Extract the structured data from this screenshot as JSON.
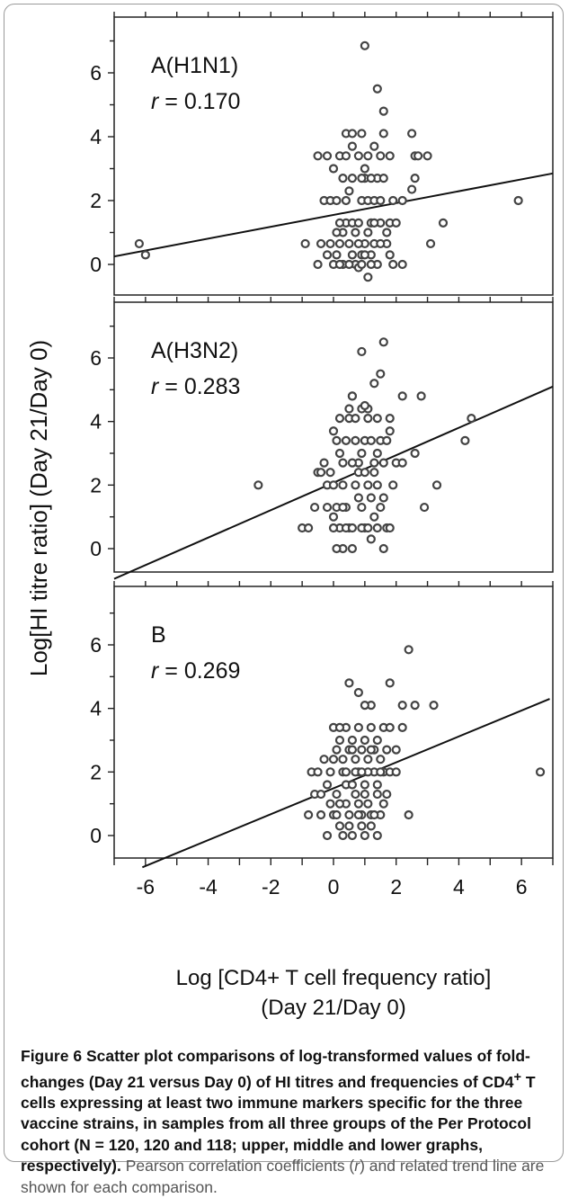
{
  "figure": {
    "ylabel": "Log[HI titre ratio] (Day 21/Day 0)",
    "xlabel_line1": "Log [CD4+ T cell frequency ratio]",
    "xlabel_line2": "(Day 21/Day 0)",
    "caption": {
      "label": "Figure 6",
      "bold_text_1": " Scatter plot comparisons of log-transformed values of fold-changes (Day 21 versus Day 0) of HI titres and frequencies of CD4",
      "superscript": "+",
      "bold_text_2": " T cells expressing at least two immune markers specific for the three vaccine strains, in samples from all three groups of the Per Protocol cohort (N = 120, 120 and 118; upper, middle and lower graphs, respectively).",
      "plain_text_1": " Pearson correlation coefficients (",
      "plain_italic": "r",
      "plain_text_2": ") and related trend line are shown for each comparison."
    }
  },
  "chart_data": [
    {
      "type": "scatter",
      "title": "A(H1N1)",
      "r_label": "r",
      "r_value": "= 0.170",
      "xlim": [
        -7,
        7
      ],
      "ylim": [
        -1,
        7
      ],
      "yticks": [
        0,
        2,
        4,
        6
      ],
      "trend_line": [
        [
          -7,
          0.25
        ],
        [
          7,
          2.85
        ]
      ],
      "points": [
        [
          -6.2,
          0.65
        ],
        [
          -6.0,
          0.3
        ],
        [
          1.0,
          6.85
        ],
        [
          1.4,
          5.5
        ],
        [
          1.6,
          4.8
        ],
        [
          3.0,
          3.4
        ],
        [
          2.5,
          4.1
        ],
        [
          2.6,
          2.7
        ],
        [
          2.5,
          2.35
        ],
        [
          2.6,
          3.4
        ],
        [
          2.7,
          3.4
        ],
        [
          3.5,
          1.3
        ],
        [
          3.1,
          0.65
        ],
        [
          5.9,
          2.0
        ],
        [
          -0.9,
          0.65
        ],
        [
          -0.5,
          0.0
        ],
        [
          -0.2,
          0.3
        ],
        [
          -0.1,
          0.65
        ],
        [
          0.0,
          0.0
        ],
        [
          0.1,
          0.3
        ],
        [
          0.2,
          0.65
        ],
        [
          0.3,
          1.0
        ],
        [
          0.4,
          1.3
        ],
        [
          0.5,
          0.65
        ],
        [
          0.6,
          0.3
        ],
        [
          0.7,
          0.0
        ],
        [
          0.8,
          -0.1
        ],
        [
          0.9,
          0.3
        ],
        [
          1.0,
          0.65
        ],
        [
          1.1,
          1.0
        ],
        [
          1.2,
          0.3
        ],
        [
          1.3,
          0.65
        ],
        [
          1.4,
          0.0
        ],
        [
          1.5,
          1.3
        ],
        [
          1.7,
          0.65
        ],
        [
          1.8,
          0.3
        ],
        [
          1.9,
          0.0
        ],
        [
          2.2,
          0.0
        ],
        [
          0.2,
          1.3
        ],
        [
          0.4,
          2.0
        ],
        [
          0.5,
          2.3
        ],
        [
          0.6,
          1.3
        ],
        [
          0.7,
          1.0
        ],
        [
          0.8,
          1.3
        ],
        [
          0.9,
          2.0
        ],
        [
          1.0,
          2.7
        ],
        [
          1.1,
          2.0
        ],
        [
          1.2,
          1.3
        ],
        [
          1.3,
          2.0
        ],
        [
          1.4,
          2.7
        ],
        [
          1.5,
          2.0
        ],
        [
          1.6,
          2.7
        ],
        [
          1.8,
          1.3
        ],
        [
          1.9,
          2.0
        ],
        [
          2.2,
          2.0
        ],
        [
          -0.3,
          2.0
        ],
        [
          -0.1,
          2.0
        ],
        [
          0.1,
          2.0
        ],
        [
          0.3,
          2.7
        ],
        [
          0.6,
          2.7
        ],
        [
          0.9,
          2.7
        ],
        [
          1.0,
          3.0
        ],
        [
          1.2,
          2.7
        ],
        [
          1.5,
          3.4
        ],
        [
          1.8,
          3.4
        ],
        [
          2.0,
          1.3
        ],
        [
          -0.5,
          3.4
        ],
        [
          -0.2,
          3.4
        ],
        [
          0.0,
          3.0
        ],
        [
          0.2,
          3.4
        ],
        [
          0.4,
          3.4
        ],
        [
          0.6,
          3.7
        ],
        [
          0.8,
          3.4
        ],
        [
          0.9,
          4.1
        ],
        [
          1.1,
          3.4
        ],
        [
          1.3,
          3.7
        ],
        [
          0.4,
          4.1
        ],
        [
          0.6,
          4.1
        ],
        [
          1.6,
          4.1
        ],
        [
          0.3,
          0.0
        ],
        [
          0.5,
          0.0
        ],
        [
          0.9,
          0.0
        ],
        [
          1.1,
          -0.4
        ],
        [
          1.2,
          0.0
        ],
        [
          1.5,
          0.65
        ],
        [
          1.7,
          1.0
        ],
        [
          0.1,
          1.0
        ],
        [
          -0.4,
          0.65
        ],
        [
          0.2,
          0.0
        ],
        [
          0.8,
          0.65
        ],
        [
          1.0,
          0.3
        ],
        [
          1.3,
          1.3
        ]
      ]
    },
    {
      "type": "scatter",
      "title": "A(H3N2)",
      "r_label": "r",
      "r_value": "= 0.283",
      "xlim": [
        -7,
        7
      ],
      "ylim": [
        -1,
        7
      ],
      "yticks": [
        0,
        2,
        4,
        6
      ],
      "trend_line": [
        [
          -7,
          -0.95
        ],
        [
          7,
          5.1
        ]
      ],
      "points": [
        [
          -2.4,
          2.0
        ],
        [
          1.6,
          6.5
        ],
        [
          0.9,
          6.2
        ],
        [
          1.5,
          5.5
        ],
        [
          1.3,
          5.2
        ],
        [
          2.2,
          4.8
        ],
        [
          2.8,
          4.8
        ],
        [
          4.4,
          4.1
        ],
        [
          4.2,
          3.4
        ],
        [
          2.6,
          3.0
        ],
        [
          3.3,
          2.0
        ],
        [
          2.9,
          1.3
        ],
        [
          -1.0,
          0.65
        ],
        [
          -0.8,
          0.65
        ],
        [
          -0.6,
          1.3
        ],
        [
          -0.5,
          2.4
        ],
        [
          -0.4,
          2.4
        ],
        [
          -0.3,
          2.7
        ],
        [
          -0.2,
          2.0
        ],
        [
          -0.1,
          2.4
        ],
        [
          0.0,
          2.0
        ],
        [
          0.1,
          1.3
        ],
        [
          0.2,
          0.65
        ],
        [
          0.3,
          0.0
        ],
        [
          0.4,
          1.3
        ],
        [
          0.5,
          0.65
        ],
        [
          0.6,
          0.0
        ],
        [
          0.7,
          2.0
        ],
        [
          0.8,
          2.4
        ],
        [
          0.9,
          1.3
        ],
        [
          1.0,
          0.65
        ],
        [
          1.1,
          2.0
        ],
        [
          1.2,
          0.3
        ],
        [
          1.3,
          1.0
        ],
        [
          1.4,
          2.0
        ],
        [
          1.5,
          1.3
        ],
        [
          1.6,
          0.0
        ],
        [
          1.7,
          0.65
        ],
        [
          1.8,
          0.65
        ],
        [
          1.9,
          2.0
        ],
        [
          2.0,
          2.7
        ],
        [
          2.2,
          2.7
        ],
        [
          0.0,
          3.7
        ],
        [
          0.1,
          3.4
        ],
        [
          0.2,
          3.0
        ],
        [
          0.3,
          2.7
        ],
        [
          0.4,
          3.4
        ],
        [
          0.5,
          4.1
        ],
        [
          0.6,
          4.8
        ],
        [
          0.7,
          3.4
        ],
        [
          0.8,
          2.7
        ],
        [
          0.9,
          3.0
        ],
        [
          1.0,
          3.4
        ],
        [
          1.1,
          4.4
        ],
        [
          1.2,
          3.4
        ],
        [
          1.3,
          2.7
        ],
        [
          1.4,
          3.0
        ],
        [
          1.5,
          3.4
        ],
        [
          1.6,
          2.7
        ],
        [
          1.7,
          3.4
        ],
        [
          1.8,
          3.7
        ],
        [
          0.2,
          4.1
        ],
        [
          0.5,
          4.4
        ],
        [
          0.7,
          4.1
        ],
        [
          0.9,
          4.4
        ],
        [
          1.1,
          4.1
        ],
        [
          1.4,
          4.1
        ],
        [
          1.8,
          4.1
        ],
        [
          0.0,
          0.65
        ],
        [
          0.1,
          0.0
        ],
        [
          0.4,
          0.65
        ],
        [
          0.6,
          0.65
        ],
        [
          0.9,
          0.65
        ],
        [
          1.1,
          0.65
        ],
        [
          1.4,
          0.65
        ],
        [
          1.6,
          1.6
        ],
        [
          1.2,
          1.6
        ],
        [
          0.8,
          1.6
        ],
        [
          0.3,
          1.3
        ],
        [
          -0.2,
          1.3
        ],
        [
          0.0,
          1.0
        ],
        [
          0.3,
          2.0
        ],
        [
          0.6,
          2.7
        ],
        [
          1.0,
          2.4
        ],
        [
          1.3,
          2.4
        ],
        [
          0.6,
          4.8
        ],
        [
          1.0,
          4.5
        ]
      ]
    },
    {
      "type": "scatter",
      "title": "B",
      "r_label": "r",
      "r_value": "= 0.269",
      "xlim": [
        -7,
        7
      ],
      "ylim": [
        -1,
        7
      ],
      "yticks": [
        0,
        2,
        4,
        6
      ],
      "trend_line": [
        [
          -6.1,
          -1.0
        ],
        [
          6.9,
          4.3
        ]
      ],
      "points": [
        [
          2.4,
          5.85
        ],
        [
          6.6,
          2.0
        ],
        [
          0.5,
          4.8
        ],
        [
          0.8,
          4.5
        ],
        [
          1.8,
          4.8
        ],
        [
          1.2,
          4.1
        ],
        [
          2.2,
          4.1
        ],
        [
          2.6,
          4.1
        ],
        [
          3.2,
          4.1
        ],
        [
          1.0,
          4.1
        ],
        [
          -0.7,
          2.0
        ],
        [
          -0.6,
          1.3
        ],
        [
          -0.5,
          2.0
        ],
        [
          -0.4,
          0.65
        ],
        [
          -0.3,
          2.4
        ],
        [
          -0.2,
          1.6
        ],
        [
          -0.1,
          2.0
        ],
        [
          0.0,
          0.65
        ],
        [
          0.1,
          1.3
        ],
        [
          0.2,
          0.3
        ],
        [
          0.3,
          0.0
        ],
        [
          0.4,
          1.0
        ],
        [
          0.5,
          0.65
        ],
        [
          0.6,
          0.0
        ],
        [
          0.7,
          1.3
        ],
        [
          0.8,
          2.0
        ],
        [
          0.9,
          0.65
        ],
        [
          1.0,
          0.0
        ],
        [
          1.1,
          1.0
        ],
        [
          1.2,
          0.65
        ],
        [
          1.3,
          2.0
        ],
        [
          1.4,
          1.3
        ],
        [
          1.5,
          0.65
        ],
        [
          1.6,
          2.0
        ],
        [
          1.7,
          1.3
        ],
        [
          1.8,
          2.0
        ],
        [
          2.0,
          2.7
        ],
        [
          2.2,
          3.4
        ],
        [
          2.4,
          0.65
        ],
        [
          0.0,
          3.4
        ],
        [
          0.1,
          2.7
        ],
        [
          0.2,
          3.0
        ],
        [
          0.3,
          2.4
        ],
        [
          0.4,
          3.4
        ],
        [
          0.5,
          2.7
        ],
        [
          0.6,
          3.0
        ],
        [
          0.7,
          2.4
        ],
        [
          0.8,
          3.4
        ],
        [
          0.9,
          2.7
        ],
        [
          1.0,
          3.0
        ],
        [
          1.1,
          2.4
        ],
        [
          1.2,
          3.4
        ],
        [
          1.3,
          2.7
        ],
        [
          1.4,
          3.0
        ],
        [
          1.5,
          2.4
        ],
        [
          1.6,
          3.4
        ],
        [
          1.8,
          3.4
        ],
        [
          2.0,
          2.0
        ],
        [
          -0.8,
          0.65
        ],
        [
          -0.2,
          0.0
        ],
        [
          0.2,
          1.0
        ],
        [
          0.4,
          1.6
        ],
        [
          0.6,
          1.6
        ],
        [
          0.8,
          1.0
        ],
        [
          1.0,
          1.6
        ],
        [
          1.2,
          0.3
        ],
        [
          1.4,
          1.6
        ],
        [
          1.6,
          1.0
        ],
        [
          0.3,
          2.0
        ],
        [
          0.7,
          2.0
        ],
        [
          1.1,
          2.0
        ],
        [
          1.5,
          2.0
        ],
        [
          0.1,
          0.65
        ],
        [
          0.5,
          0.3
        ],
        [
          0.9,
          0.3
        ],
        [
          1.3,
          0.65
        ],
        [
          -0.1,
          1.0
        ],
        [
          0.4,
          2.0
        ],
        [
          0.9,
          2.0
        ],
        [
          1.2,
          2.7
        ],
        [
          0.6,
          2.7
        ],
        [
          1.7,
          2.7
        ],
        [
          -0.4,
          1.3
        ],
        [
          1.0,
          1.3
        ],
        [
          0.0,
          2.4
        ],
        [
          0.2,
          3.4
        ],
        [
          0.8,
          0.65
        ],
        [
          1.4,
          0.0
        ]
      ]
    }
  ]
}
